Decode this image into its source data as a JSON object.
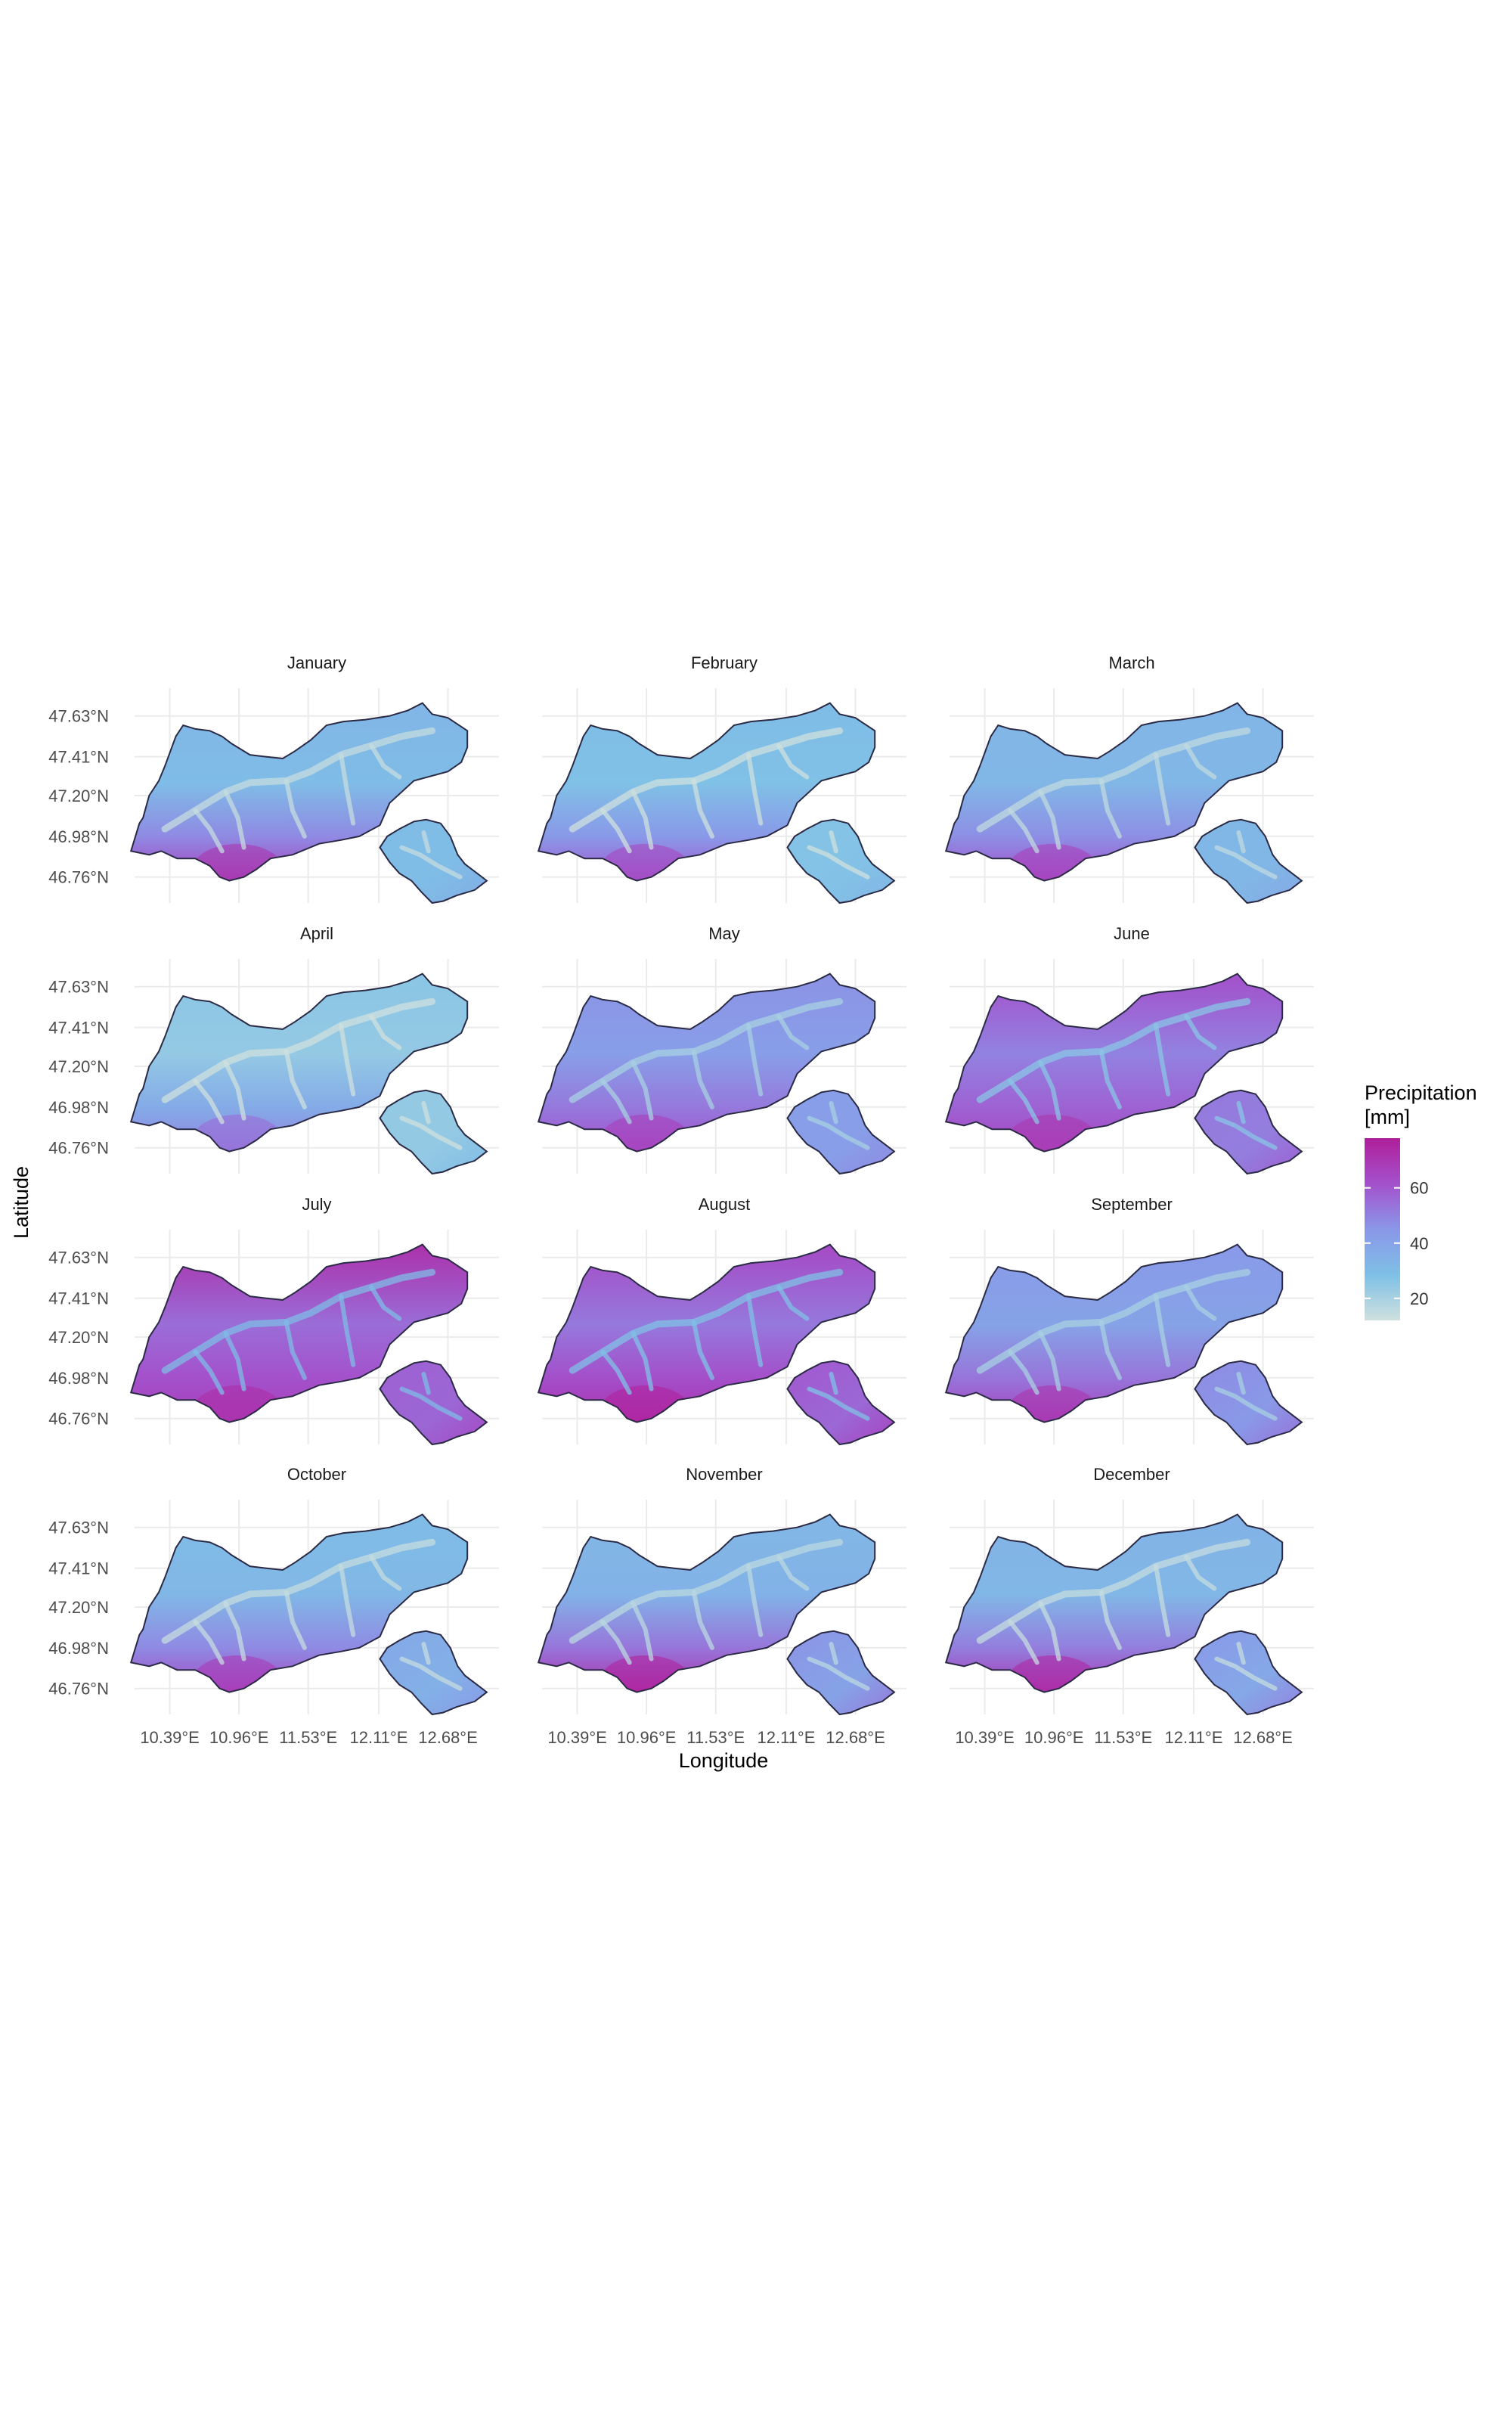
{
  "figure": {
    "x_axis_title": "Longitude",
    "y_axis_title": "Latitude",
    "legend": {
      "title_line1": "Precipitation",
      "title_line2": "[mm]",
      "ticks": [
        20,
        40,
        60
      ],
      "range": [
        12,
        78
      ],
      "colors": [
        "#cfe0de",
        "#7ec0e6",
        "#8a97e8",
        "#a451cc",
        "#b01f9a"
      ]
    }
  },
  "chart_data": {
    "type": "heatmap",
    "title": "",
    "xlabel": "Longitude",
    "ylabel": "Latitude",
    "x_ticks": [
      "10.39°E",
      "10.96°E",
      "11.53°E",
      "12.11°E",
      "12.68°E"
    ],
    "y_ticks": [
      "47.63°N",
      "47.41°N",
      "47.20°N",
      "46.98°N",
      "46.76°N"
    ],
    "x_tick_values": [
      10.39,
      10.96,
      11.53,
      12.11,
      12.68
    ],
    "y_tick_values": [
      47.63,
      47.41,
      47.2,
      46.98,
      46.76
    ],
    "xlim": [
      10.1,
      13.1
    ],
    "ylim": [
      46.62,
      47.78
    ],
    "grid": true,
    "legend_position": "right",
    "panels": [
      {
        "month": "January",
        "base": 30,
        "north": 33,
        "south": 66,
        "east": 30,
        "valley": 14
      },
      {
        "month": "February",
        "base": 28,
        "north": 30,
        "south": 60,
        "east": 27,
        "valley": 12
      },
      {
        "month": "March",
        "base": 32,
        "north": 33,
        "south": 62,
        "east": 32,
        "valley": 15
      },
      {
        "month": "April",
        "base": 24,
        "north": 26,
        "south": 50,
        "east": 24,
        "valley": 10
      },
      {
        "month": "May",
        "base": 42,
        "north": 46,
        "south": 62,
        "east": 42,
        "valley": 20
      },
      {
        "month": "June",
        "base": 50,
        "north": 62,
        "south": 65,
        "east": 52,
        "valley": 26
      },
      {
        "month": "July",
        "base": 55,
        "north": 72,
        "south": 68,
        "east": 58,
        "valley": 30
      },
      {
        "month": "August",
        "base": 52,
        "north": 64,
        "south": 72,
        "east": 60,
        "valley": 28
      },
      {
        "month": "September",
        "base": 40,
        "north": 44,
        "south": 66,
        "east": 48,
        "valley": 20
      },
      {
        "month": "October",
        "base": 32,
        "north": 30,
        "south": 64,
        "east": 38,
        "valley": 14
      },
      {
        "month": "November",
        "base": 34,
        "north": 32,
        "south": 72,
        "east": 46,
        "valley": 16
      },
      {
        "month": "December",
        "base": 32,
        "north": 34,
        "south": 70,
        "east": 44,
        "valley": 14
      }
    ]
  }
}
